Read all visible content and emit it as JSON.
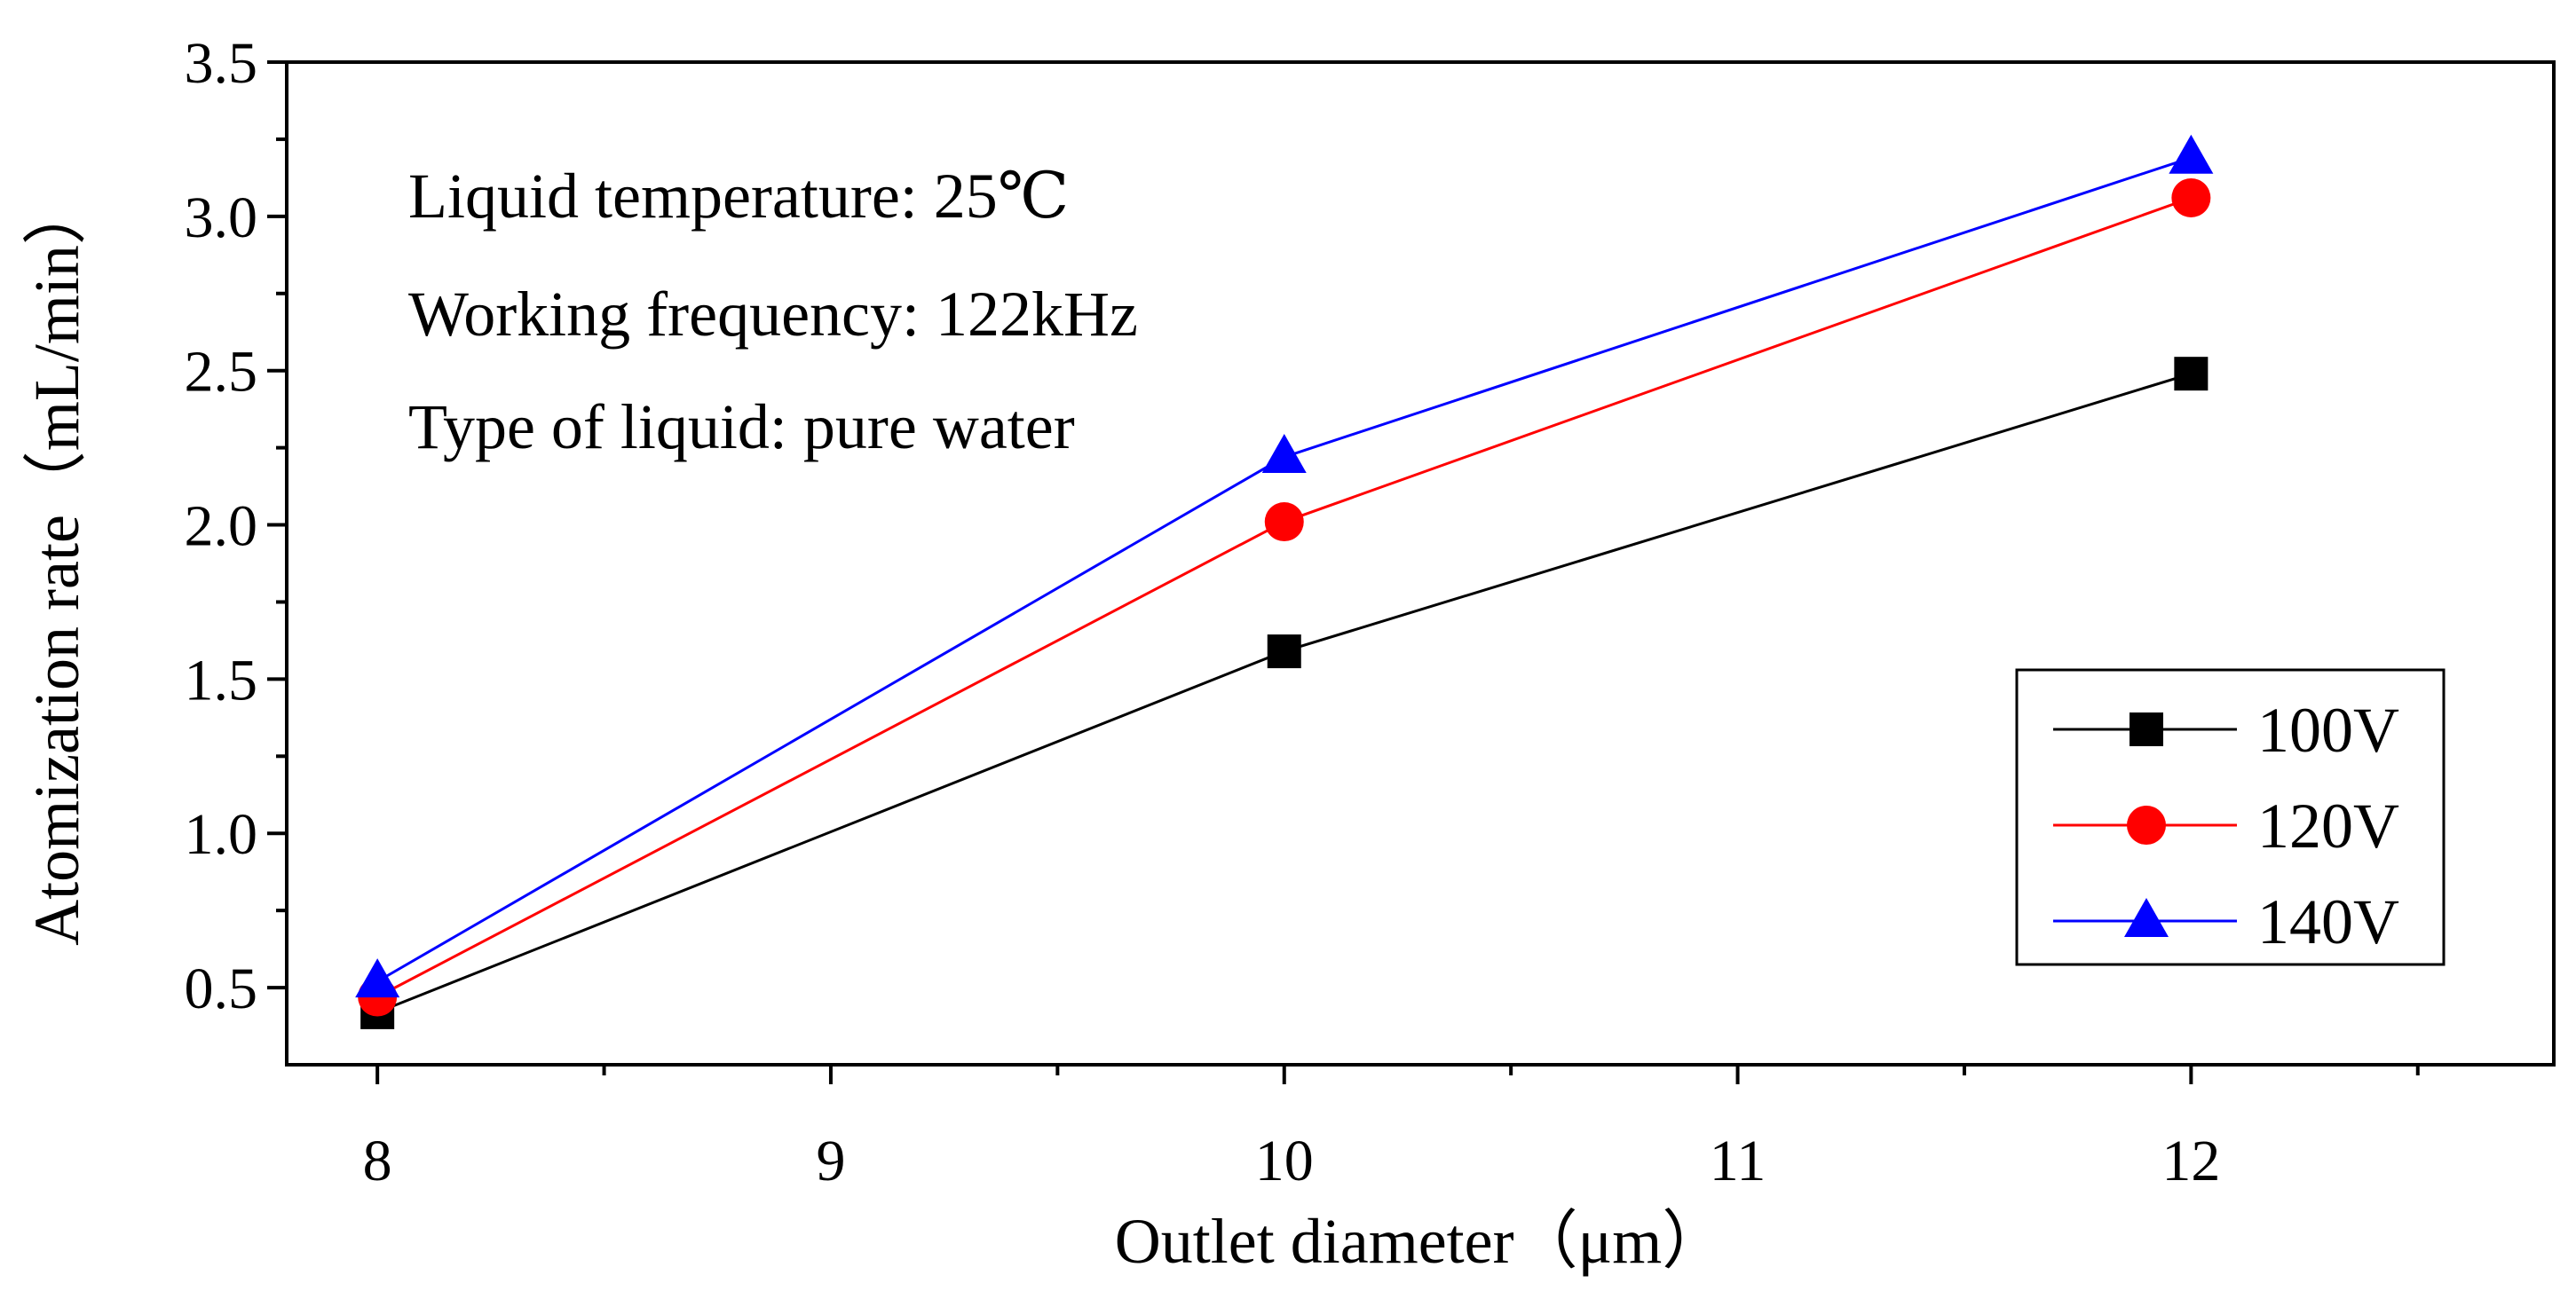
{
  "chart_data": {
    "type": "line",
    "title": "",
    "xlabel": "Outlet diameter（μm）",
    "ylabel": "Atomization rate（mL/min）",
    "x": [
      8,
      10,
      12
    ],
    "xlim": [
      7.8,
      12.8
    ],
    "ylim": [
      0.25,
      3.5
    ],
    "xticks": [
      8,
      9,
      10,
      11,
      12
    ],
    "xtick_labels": [
      "8",
      "9",
      "10",
      "11",
      "12"
    ],
    "xminor": [
      8.5,
      9.5,
      10.5,
      11.5,
      12.5
    ],
    "yticks": [
      0.5,
      1.0,
      1.5,
      2.0,
      2.5,
      3.0,
      3.5
    ],
    "ytick_labels": [
      "0.5",
      "1.0",
      "1.5",
      "2.0",
      "2.5",
      "3.0",
      "3.5"
    ],
    "yminor": [
      0.75,
      1.25,
      1.75,
      2.25,
      2.75,
      3.25
    ],
    "grid": false,
    "legend_position": "lower-right",
    "series": [
      {
        "name": "100V",
        "values": [
          0.42,
          1.59,
          2.49
        ],
        "color": "#000000",
        "marker": "square"
      },
      {
        "name": "120V",
        "values": [
          0.47,
          2.01,
          3.06
        ],
        "color": "#ff0000",
        "marker": "circle"
      },
      {
        "name": "140V",
        "values": [
          0.52,
          2.22,
          3.19
        ],
        "color": "#0000ff",
        "marker": "triangle"
      }
    ],
    "annotations": [
      "Liquid temperature: 25℃",
      "Working frequency: 122kHz",
      "Type of liquid: pure water"
    ]
  }
}
